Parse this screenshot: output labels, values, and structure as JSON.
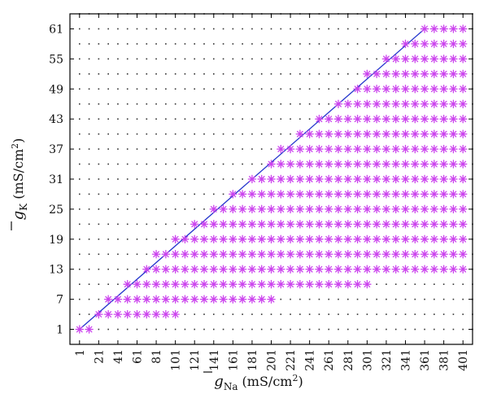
{
  "chart_data": {
    "type": "scatter",
    "title": "",
    "xlabel": {
      "symbol": "g",
      "sub": "Na",
      "unit": " (mS/cm",
      "sup": "2",
      "close": ")"
    },
    "ylabel": {
      "symbol": "g",
      "sub": "K",
      "unit": " (mS/cm",
      "sup": "2",
      "close": ")"
    },
    "x_ticks": [
      1,
      21,
      41,
      61,
      81,
      101,
      121,
      141,
      161,
      181,
      201,
      221,
      241,
      261,
      281,
      301,
      321,
      341,
      361,
      381,
      401
    ],
    "y_ticks": [
      1,
      7,
      13,
      19,
      25,
      31,
      37,
      43,
      49,
      55,
      61
    ],
    "xlim": [
      -9,
      411
    ],
    "ylim": [
      -2,
      64
    ],
    "grid": "dotted",
    "x_grid_step": 10,
    "y_grid_step": 3,
    "grid_x_start": 1,
    "grid_y_start": 1,
    "colors": {
      "marker": "#cc44ee",
      "line": "#2233cc",
      "grid": "#333333"
    },
    "marker": "asterisk",
    "line": {
      "x": [
        1,
        361
      ],
      "y": [
        1,
        61
      ]
    },
    "series": [
      {
        "x_values": [
          1,
          11
        ],
        "y": 1
      },
      {
        "x_values": [
          21,
          31,
          41,
          51,
          61,
          71,
          81,
          91,
          101
        ],
        "y": 4
      },
      {
        "x_values": [
          31,
          41,
          51,
          61,
          71,
          81,
          91,
          101,
          111,
          121,
          131,
          141,
          151,
          161,
          171,
          181,
          191,
          201
        ],
        "y": 7
      },
      {
        "x_values": [
          51,
          61,
          71,
          81,
          91,
          101,
          111,
          121,
          131,
          141,
          151,
          161,
          171,
          181,
          191,
          201,
          211,
          221,
          231,
          241,
          251,
          261,
          271,
          281,
          291,
          301
        ],
        "y": 10
      },
      {
        "x_start": 71,
        "x_end": 401,
        "step": 10,
        "y": 13
      },
      {
        "x_start": 81,
        "x_end": 401,
        "step": 10,
        "y": 16
      },
      {
        "x_start": 101,
        "x_end": 401,
        "step": 10,
        "y": 19
      },
      {
        "x_start": 121,
        "x_end": 401,
        "step": 10,
        "y": 22
      },
      {
        "x_start": 141,
        "x_end": 401,
        "step": 10,
        "y": 25
      },
      {
        "x_start": 161,
        "x_end": 401,
        "step": 10,
        "y": 28
      },
      {
        "x_start": 181,
        "x_end": 401,
        "step": 10,
        "y": 31
      },
      {
        "x_start": 201,
        "x_end": 401,
        "step": 10,
        "y": 34
      },
      {
        "x_start": 211,
        "x_end": 401,
        "step": 10,
        "y": 37
      },
      {
        "x_start": 231,
        "x_end": 401,
        "step": 10,
        "y": 40
      },
      {
        "x_start": 251,
        "x_end": 401,
        "step": 10,
        "y": 43
      },
      {
        "x_start": 271,
        "x_end": 401,
        "step": 10,
        "y": 46
      },
      {
        "x_start": 291,
        "x_end": 401,
        "step": 10,
        "y": 49
      },
      {
        "x_start": 301,
        "x_end": 401,
        "step": 10,
        "y": 52
      },
      {
        "x_start": 321,
        "x_end": 401,
        "step": 10,
        "y": 55
      },
      {
        "x_start": 341,
        "x_end": 401,
        "step": 10,
        "y": 58
      },
      {
        "x_start": 361,
        "x_end": 401,
        "step": 10,
        "y": 61
      }
    ]
  }
}
